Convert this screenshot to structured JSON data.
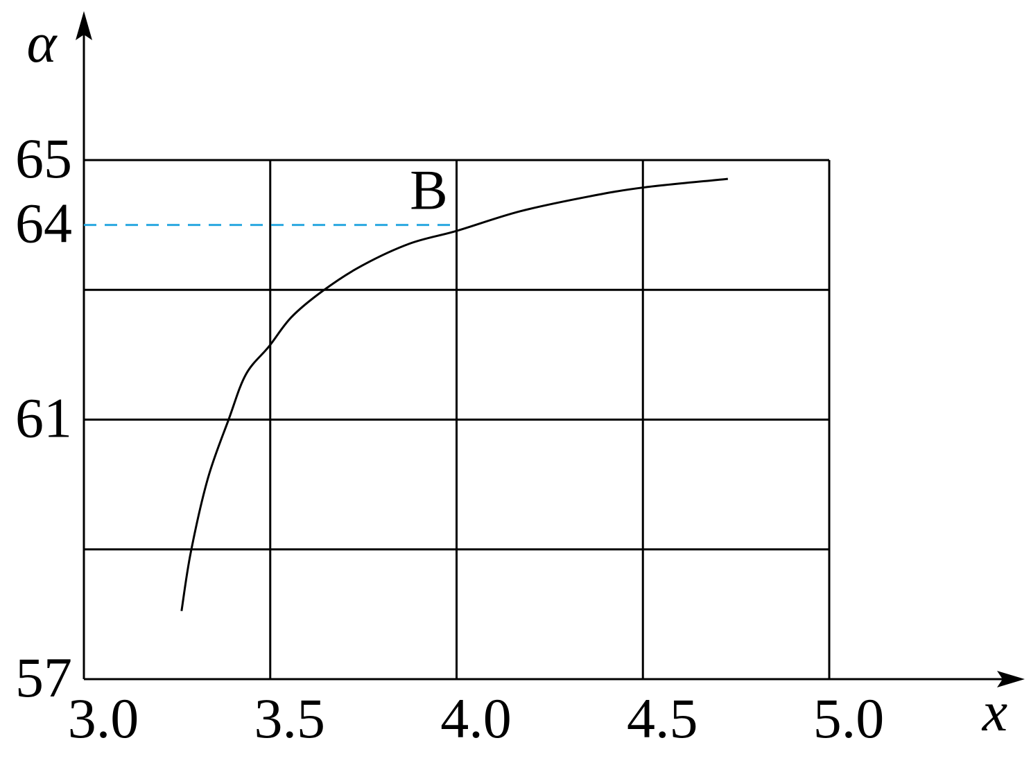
{
  "chart_data": {
    "type": "line",
    "x_label": "x",
    "y_label": "α",
    "xlim": [
      3,
      5
    ],
    "ylim": [
      57,
      65
    ],
    "xticks": [
      {
        "value": 3,
        "label": "3.0"
      },
      3.5,
      {
        "value": 4,
        "label": "4.0"
      },
      4.5,
      {
        "value": 5,
        "label": "5.0"
      }
    ],
    "yticks": [
      57,
      61,
      64,
      65
    ],
    "ygrid": [
      57,
      59,
      61,
      63,
      65
    ],
    "grid": true,
    "reference_line": {
      "y": 64,
      "x": 4,
      "color": "#29a8e0",
      "label": "B"
    },
    "series": [
      {
        "color": "#000000",
        "x": [
          3.262,
          3.287,
          3.333,
          3.389,
          3.435,
          3.497,
          3.557,
          3.64,
          3.742,
          3.873,
          4.001,
          4.17,
          4.356,
          4.505,
          4.728
        ],
        "values": [
          58.05,
          58.96,
          60.1,
          61.01,
          61.7,
          62.13,
          62.58,
          62.98,
          63.36,
          63.71,
          63.91,
          64.21,
          64.44,
          64.58,
          64.71
        ]
      }
    ]
  }
}
